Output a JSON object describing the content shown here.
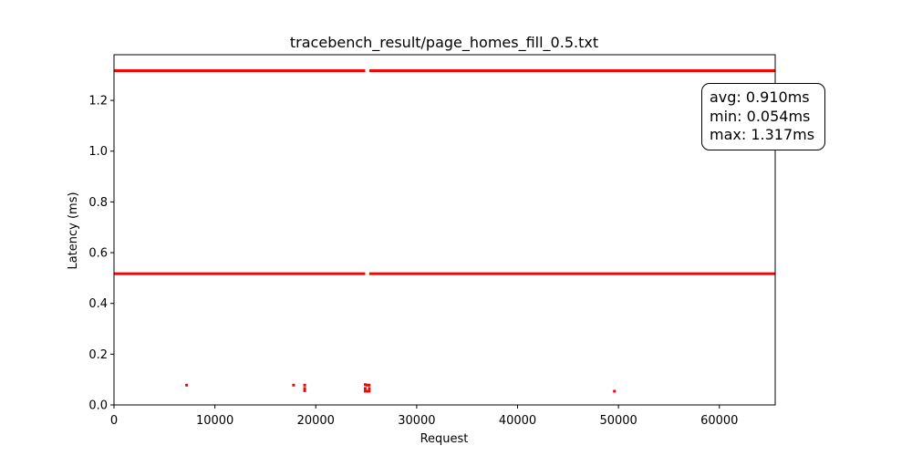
{
  "chart_data": {
    "type": "scatter",
    "title": "tracebench_result/page_homes_fill_0.5.txt",
    "xlabel": "Request",
    "ylabel": "Latency (ms)",
    "xlim": [
      0,
      65536
    ],
    "ylim": [
      0,
      1.38
    ],
    "xticks": [
      0,
      10000,
      20000,
      30000,
      40000,
      50000,
      60000
    ],
    "xtick_labels": [
      "0",
      "10000",
      "20000",
      "30000",
      "40000",
      "50000",
      "60000"
    ],
    "yticks": [
      0.0,
      0.2,
      0.4,
      0.6,
      0.8,
      1.0,
      1.2
    ],
    "ytick_labels": [
      "0.0",
      "0.2",
      "0.4",
      "0.6",
      "0.8",
      "1.0",
      "1.2"
    ],
    "grid": false,
    "marker_color": "#ff0000",
    "bands": [
      {
        "y": 1.317,
        "x_start": 0,
        "x_end": 65536,
        "gap": [
          24900,
          25300
        ]
      },
      {
        "y": 0.517,
        "x_start": 0,
        "x_end": 65536,
        "gap": [
          24900,
          25300
        ]
      }
    ],
    "points": [
      {
        "x": 7200,
        "y": 0.078
      },
      {
        "x": 17800,
        "y": 0.078
      },
      {
        "x": 18900,
        "y": 0.078
      },
      {
        "x": 18900,
        "y": 0.065
      },
      {
        "x": 18900,
        "y": 0.056
      },
      {
        "x": 24900,
        "y": 0.08
      },
      {
        "x": 25100,
        "y": 0.078
      },
      {
        "x": 25300,
        "y": 0.078
      },
      {
        "x": 24900,
        "y": 0.065
      },
      {
        "x": 25300,
        "y": 0.065
      },
      {
        "x": 24900,
        "y": 0.054
      },
      {
        "x": 25100,
        "y": 0.054
      },
      {
        "x": 25300,
        "y": 0.054
      },
      {
        "x": 49600,
        "y": 0.054
      }
    ],
    "annotation": {
      "lines": [
        "avg: 0.910ms",
        "min: 0.054ms",
        "max: 1.317ms"
      ],
      "placement": "top-right"
    }
  }
}
